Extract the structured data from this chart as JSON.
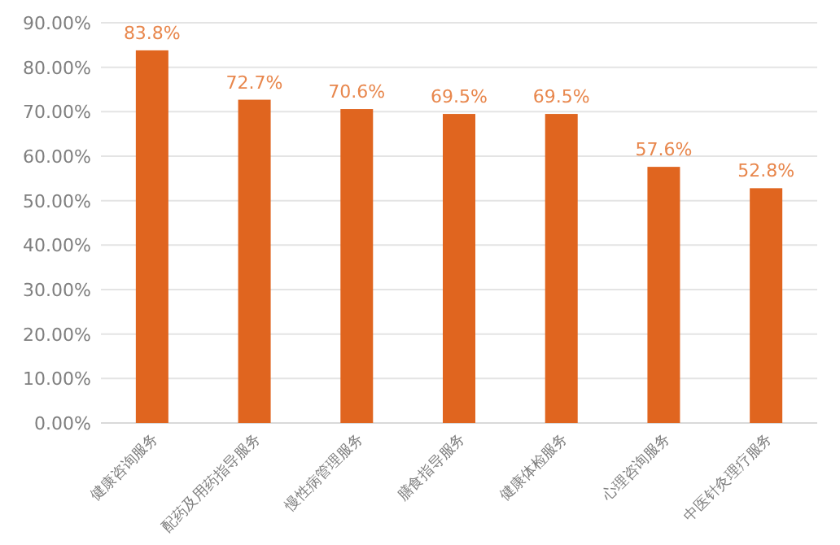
{
  "chart_data": {
    "type": "bar",
    "categories": [
      "健康咨询服务",
      "配药及用药指导服务",
      "慢性病管理服务",
      "膳食指导服务",
      "健康体检服务",
      "心理咨询服务",
      "中医针灸理疗服务"
    ],
    "values": [
      83.8,
      72.7,
      70.6,
      69.5,
      69.5,
      57.6,
      52.8
    ],
    "value_labels": [
      "83.8%",
      "72.7%",
      "70.6%",
      "69.5%",
      "69.5%",
      "57.6%",
      "52.8%"
    ],
    "color": "#e0651f",
    "ylim": [
      0,
      90
    ],
    "yticks": [
      {
        "value": 0,
        "label": "0.00%"
      },
      {
        "value": 10,
        "label": "10.00%"
      },
      {
        "value": 20,
        "label": "20.00%"
      },
      {
        "value": 30,
        "label": "30.00%"
      },
      {
        "value": 40,
        "label": "40.00%"
      },
      {
        "value": 50,
        "label": "50.00%"
      },
      {
        "value": 60,
        "label": "60.00%"
      },
      {
        "value": 70,
        "label": "70.00%"
      },
      {
        "value": 80,
        "label": "80.00%"
      },
      {
        "value": 90,
        "label": "90.00%"
      }
    ],
    "grid": "y"
  }
}
